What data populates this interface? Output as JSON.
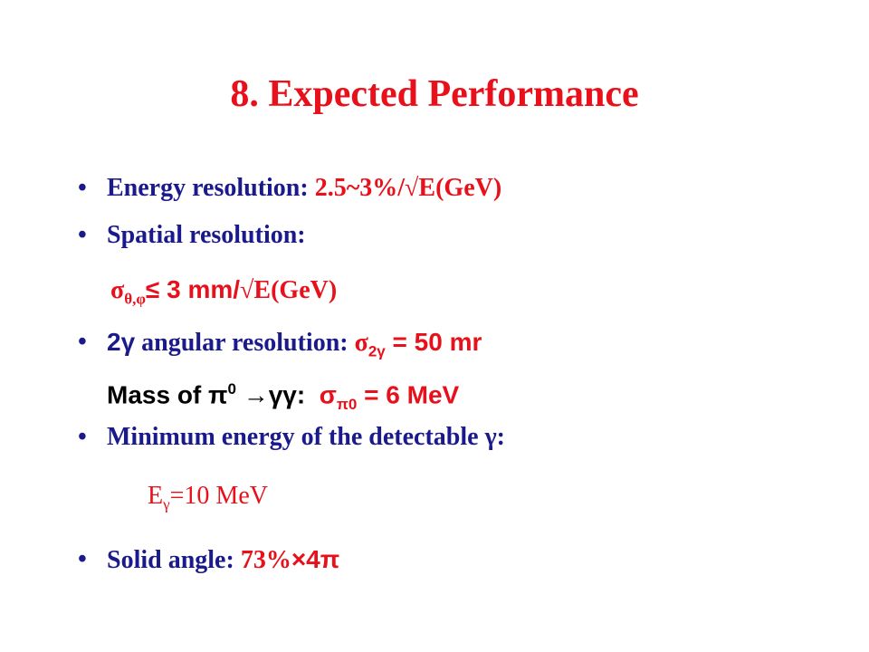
{
  "title": "8. Expected Performance",
  "lines": [
    [
      "Energy resolution:",
      "2.5~3%/√E(GeV)"
    ],
    [
      "Spatial resolution:"
    ],
    [
      "σ",
      "θ,φ",
      "≤ 3 mm/",
      "√E(GeV)"
    ],
    [
      "2γ",
      " angular resolution:",
      "σ",
      "2γ",
      " = 50 mr"
    ],
    [
      "Mass of ",
      "π",
      "0",
      " →γγ:",
      "σ",
      "π0",
      " = 6 MeV"
    ],
    [
      "Minimum energy of the detectable γ:"
    ],
    [
      "E",
      "γ",
      "=10 MeV"
    ],
    [
      "Solid angle: ",
      "73%",
      "×4π"
    ]
  ]
}
